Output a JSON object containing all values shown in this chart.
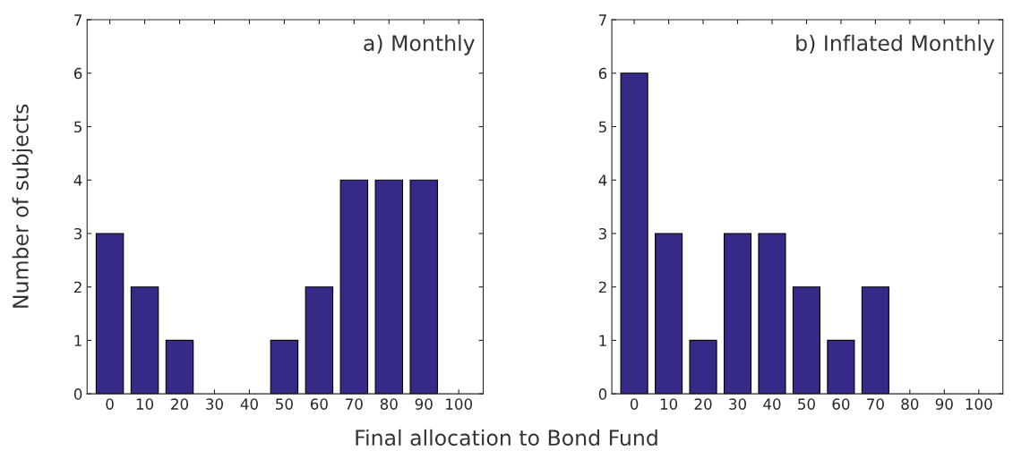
{
  "chart_data": [
    {
      "type": "bar",
      "categories": [
        "0",
        "10",
        "20",
        "30",
        "40",
        "50",
        "60",
        "70",
        "80",
        "90",
        "100"
      ],
      "values": [
        3,
        2,
        1,
        0,
        0,
        1,
        2,
        4,
        4,
        4,
        0
      ],
      "color": "#352a87",
      "ylim": [
        0,
        7
      ],
      "yticks": [
        0,
        1,
        2,
        3,
        4,
        5,
        6,
        7
      ],
      "ylabel": "Number of subjects",
      "xlabel": "Final allocation to Bond Fund",
      "annotations": [
        "a) Monthly"
      ],
      "grid": false,
      "legend": false
    },
    {
      "type": "bar",
      "categories": [
        "0",
        "10",
        "20",
        "30",
        "40",
        "50",
        "60",
        "70",
        "80",
        "90",
        "100"
      ],
      "values": [
        6,
        3,
        1,
        3,
        3,
        2,
        1,
        2,
        0,
        0,
        0
      ],
      "color": "#352a87",
      "ylim": [
        0,
        7
      ],
      "yticks": [
        0,
        1,
        2,
        3,
        4,
        5,
        6,
        7
      ],
      "annotations": [
        "b) Inflated Monthly"
      ],
      "grid": false,
      "legend": false
    }
  ]
}
